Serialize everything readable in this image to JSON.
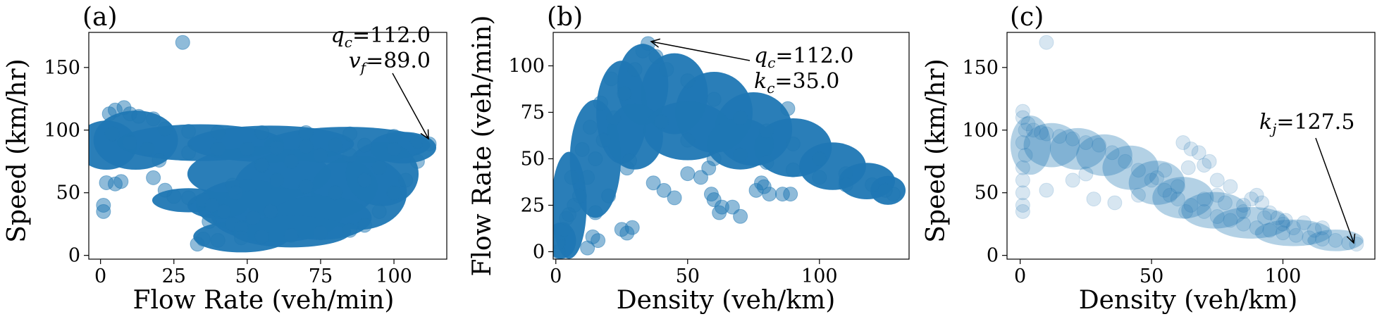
{
  "chart_data": [
    {
      "id": "a",
      "type": "scatter",
      "panel_label": "(a)",
      "xlabel": "Flow Rate (veh/min)",
      "ylabel": "Speed (km/hr)",
      "xlim": [
        -4,
        118
      ],
      "ylim": [
        -3,
        178
      ],
      "xticks": [
        0,
        25,
        50,
        75,
        100
      ],
      "yticks": [
        0,
        50,
        100,
        150
      ],
      "point_color": "#1f77b4",
      "point_alpha": 0.5,
      "annotation": {
        "lines": [
          {
            "sym": "q",
            "sub": "c",
            "val": "=112.0"
          },
          {
            "sym": "v",
            "sub": "f",
            "val": "=89.0"
          }
        ],
        "point": [
          112,
          89
        ]
      },
      "points": [
        [
          28,
          170
        ],
        [
          1,
          35
        ],
        [
          1,
          40
        ],
        [
          2,
          58
        ],
        [
          5,
          57
        ],
        [
          7,
          59
        ],
        [
          3,
          113
        ],
        [
          5,
          116
        ],
        [
          8,
          118
        ],
        [
          10,
          113
        ],
        [
          13,
          111
        ],
        [
          18,
          109
        ],
        [
          22,
          101
        ],
        [
          30,
          99
        ],
        [
          40,
          98
        ],
        [
          55,
          98
        ],
        [
          70,
          98
        ],
        [
          85,
          97
        ],
        [
          100,
          95
        ],
        [
          108,
          91
        ],
        [
          112,
          89
        ],
        [
          4,
          97
        ],
        [
          10,
          90
        ],
        [
          16,
          85
        ],
        [
          20,
          76
        ],
        [
          18,
          62
        ],
        [
          22,
          52
        ],
        [
          25,
          47
        ],
        [
          30,
          46
        ],
        [
          35,
          44
        ],
        [
          38,
          40
        ],
        [
          42,
          35
        ],
        [
          37,
          27
        ],
        [
          45,
          25
        ],
        [
          48,
          22
        ],
        [
          52,
          30
        ],
        [
          58,
          35
        ],
        [
          45,
          56
        ],
        [
          46,
          50
        ],
        [
          33,
          9
        ],
        [
          35,
          13
        ],
        [
          40,
          12
        ],
        [
          48,
          14
        ],
        [
          55,
          15
        ],
        [
          65,
          16
        ],
        [
          75,
          18
        ],
        [
          85,
          20
        ],
        [
          90,
          24
        ],
        [
          95,
          35
        ],
        [
          100,
          50
        ],
        [
          104,
          60
        ],
        [
          108,
          75
        ],
        [
          60,
          60
        ],
        [
          70,
          55
        ],
        [
          80,
          50
        ],
        [
          90,
          60
        ],
        [
          95,
          70
        ],
        [
          85,
          80
        ],
        [
          75,
          80
        ],
        [
          65,
          75
        ],
        [
          55,
          72
        ],
        [
          30,
          82
        ],
        [
          40,
          85
        ],
        [
          50,
          85
        ],
        [
          60,
          86
        ],
        [
          70,
          87
        ],
        [
          80,
          88
        ],
        [
          90,
          88
        ],
        [
          100,
          85
        ]
      ],
      "blobs": [
        {
          "cx": 2,
          "cy": 88,
          "rx": 8,
          "ry": 14
        },
        {
          "cx": 12,
          "cy": 92,
          "rx": 12,
          "ry": 18
        },
        {
          "cx": 34,
          "cy": 90,
          "rx": 26,
          "ry": 9
        },
        {
          "cx": 58,
          "cy": 89,
          "rx": 26,
          "ry": 9
        },
        {
          "cx": 84,
          "cy": 88,
          "rx": 26,
          "ry": 9
        },
        {
          "cx": 103,
          "cy": 86,
          "rx": 9,
          "ry": 7
        },
        {
          "cx": 54,
          "cy": 65,
          "rx": 22,
          "ry": 16
        },
        {
          "cx": 70,
          "cy": 55,
          "rx": 22,
          "ry": 24
        },
        {
          "cx": 88,
          "cy": 50,
          "rx": 14,
          "ry": 24
        },
        {
          "cx": 50,
          "cy": 40,
          "rx": 15,
          "ry": 15
        },
        {
          "cx": 60,
          "cy": 32,
          "rx": 20,
          "ry": 16
        },
        {
          "cx": 75,
          "cy": 30,
          "rx": 15,
          "ry": 12
        },
        {
          "cx": 48,
          "cy": 15,
          "rx": 14,
          "ry": 7
        },
        {
          "cx": 65,
          "cy": 19,
          "rx": 18,
          "ry": 7
        },
        {
          "cx": 30,
          "cy": 44,
          "rx": 10,
          "ry": 4
        },
        {
          "cx": 40,
          "cy": 40,
          "rx": 8,
          "ry": 5
        },
        {
          "cx": 96,
          "cy": 65,
          "rx": 10,
          "ry": 20
        }
      ]
    },
    {
      "id": "b",
      "type": "scatter",
      "panel_label": "(b)",
      "xlabel": "Density (veh/km)",
      "ylabel": "Flow Rate (veh/min)",
      "xlim": [
        -1,
        134
      ],
      "ylim": [
        -4,
        118
      ],
      "xticks": [
        0,
        50,
        100
      ],
      "yticks": [
        0,
        25,
        50,
        75,
        100
      ],
      "point_color": "#1f77b4",
      "point_alpha": 0.5,
      "annotation": {
        "lines": [
          {
            "sym": "q",
            "sub": "c",
            "val": "=112.0"
          },
          {
            "sym": "k",
            "sub": "c",
            "val": "=35.0"
          }
        ],
        "point": [
          35,
          112
        ]
      },
      "points": [
        [
          1,
          0
        ],
        [
          1,
          5
        ],
        [
          2,
          10
        ],
        [
          3,
          12
        ],
        [
          4,
          18
        ],
        [
          5,
          20
        ],
        [
          7,
          25
        ],
        [
          9,
          30
        ],
        [
          12,
          40
        ],
        [
          15,
          50
        ],
        [
          18,
          60
        ],
        [
          22,
          72
        ],
        [
          26,
          85
        ],
        [
          30,
          98
        ],
        [
          33,
          108
        ],
        [
          35,
          112
        ],
        [
          38,
          105
        ],
        [
          42,
          98
        ],
        [
          50,
          92
        ],
        [
          60,
          82
        ],
        [
          70,
          72
        ],
        [
          80,
          65
        ],
        [
          90,
          58
        ],
        [
          100,
          50
        ],
        [
          110,
          42
        ],
        [
          120,
          36
        ],
        [
          128,
          31
        ],
        [
          125,
          33
        ],
        [
          88,
          77
        ],
        [
          15,
          21
        ],
        [
          20,
          30
        ],
        [
          27,
          45
        ],
        [
          28,
          49
        ],
        [
          25,
          12
        ],
        [
          27,
          10
        ],
        [
          29,
          13
        ],
        [
          37,
          37
        ],
        [
          41,
          33
        ],
        [
          45,
          29
        ],
        [
          50,
          42
        ],
        [
          55,
          40
        ],
        [
          58,
          45
        ],
        [
          59,
          31
        ],
        [
          60,
          28
        ],
        [
          62,
          21
        ],
        [
          63,
          24
        ],
        [
          67,
          24
        ],
        [
          70,
          19
        ],
        [
          76,
          33
        ],
        [
          78,
          37
        ],
        [
          79,
          35
        ],
        [
          81,
          31
        ],
        [
          86,
          31
        ],
        [
          89,
          31
        ],
        [
          6,
          40
        ],
        [
          10,
          55
        ],
        [
          13,
          67
        ],
        [
          17,
          80
        ],
        [
          21,
          93
        ],
        [
          40,
          70
        ],
        [
          50,
          60
        ],
        [
          60,
          50
        ],
        [
          70,
          52
        ],
        [
          80,
          48
        ],
        [
          90,
          44
        ],
        [
          100,
          40
        ],
        [
          110,
          36
        ],
        [
          12,
          2
        ],
        [
          14,
          8
        ],
        [
          16,
          6
        ]
      ],
      "blobs": [
        {
          "cx": 5,
          "cy": 25,
          "rx": 4,
          "ry": 25
        },
        {
          "cx": 15,
          "cy": 50,
          "rx": 7,
          "ry": 28
        },
        {
          "cx": 25,
          "cy": 75,
          "rx": 7,
          "ry": 24
        },
        {
          "cx": 33,
          "cy": 90,
          "rx": 7,
          "ry": 18
        },
        {
          "cx": 45,
          "cy": 85,
          "rx": 10,
          "ry": 18
        },
        {
          "cx": 60,
          "cy": 75,
          "rx": 12,
          "ry": 18
        },
        {
          "cx": 75,
          "cy": 66,
          "rx": 12,
          "ry": 16
        },
        {
          "cx": 90,
          "cy": 56,
          "rx": 12,
          "ry": 12
        },
        {
          "cx": 105,
          "cy": 46,
          "rx": 10,
          "ry": 9
        },
        {
          "cx": 118,
          "cy": 38,
          "rx": 8,
          "ry": 6
        },
        {
          "cx": 126,
          "cy": 33,
          "rx": 4,
          "ry": 4
        },
        {
          "cx": 30,
          "cy": 62,
          "rx": 8,
          "ry": 14
        },
        {
          "cx": 50,
          "cy": 65,
          "rx": 14,
          "ry": 12
        },
        {
          "cx": 70,
          "cy": 58,
          "rx": 10,
          "ry": 10
        },
        {
          "cx": 2,
          "cy": 6,
          "rx": 3,
          "ry": 6
        }
      ]
    },
    {
      "id": "c",
      "type": "scatter",
      "panel_label": "(c)",
      "xlabel": "Density (veh/km)",
      "ylabel": "Speed (km/hr)",
      "xlim": [
        -5,
        135
      ],
      "ylim": [
        -3,
        178
      ],
      "xticks": [
        0,
        50,
        100
      ],
      "yticks": [
        0,
        50,
        100,
        150
      ],
      "point_color": "#1f77b4",
      "point_alpha": 0.18,
      "annotation": {
        "lines": [
          {
            "sym": "k",
            "sub": "j",
            "val": "=127.5"
          }
        ],
        "point": [
          127.5,
          10
        ]
      },
      "points": [
        [
          10,
          170
        ],
        [
          1,
          35
        ],
        [
          1,
          40
        ],
        [
          1,
          50
        ],
        [
          1,
          60
        ],
        [
          1,
          70
        ],
        [
          2,
          80
        ],
        [
          1,
          90
        ],
        [
          2,
          100
        ],
        [
          1,
          110
        ],
        [
          1,
          115
        ],
        [
          3,
          105
        ],
        [
          5,
          100
        ],
        [
          8,
          98
        ],
        [
          10,
          97
        ],
        [
          15,
          95
        ],
        [
          20,
          93
        ],
        [
          25,
          90
        ],
        [
          30,
          88
        ],
        [
          35,
          82
        ],
        [
          40,
          75
        ],
        [
          45,
          68
        ],
        [
          50,
          60
        ],
        [
          55,
          52
        ],
        [
          60,
          45
        ],
        [
          65,
          40
        ],
        [
          70,
          35
        ],
        [
          75,
          31
        ],
        [
          80,
          28
        ],
        [
          85,
          25
        ],
        [
          90,
          22
        ],
        [
          95,
          20
        ],
        [
          100,
          18
        ],
        [
          105,
          16
        ],
        [
          110,
          14
        ],
        [
          115,
          13
        ],
        [
          120,
          12
        ],
        [
          125,
          10
        ],
        [
          128,
          9
        ],
        [
          10,
          52
        ],
        [
          20,
          60
        ],
        [
          25,
          65
        ],
        [
          28,
          45
        ],
        [
          36,
          42
        ],
        [
          45,
          48
        ],
        [
          52,
          62
        ],
        [
          55,
          68
        ],
        [
          62,
          90
        ],
        [
          65,
          85
        ],
        [
          68,
          82
        ],
        [
          64,
          70
        ],
        [
          70,
          72
        ],
        [
          72,
          75
        ],
        [
          75,
          60
        ],
        [
          80,
          55
        ],
        [
          85,
          40
        ],
        [
          88,
          45
        ],
        [
          90,
          48
        ],
        [
          92,
          42
        ],
        [
          95,
          34
        ],
        [
          98,
          30
        ],
        [
          101,
          28
        ],
        [
          104,
          22
        ],
        [
          108,
          26
        ],
        [
          112,
          20
        ],
        [
          115,
          22
        ],
        [
          100,
          25
        ],
        [
          93,
          30
        ],
        [
          85,
          35
        ],
        [
          78,
          42
        ],
        [
          60,
          55
        ],
        [
          57,
          48
        ],
        [
          63,
          35
        ],
        [
          70,
          45
        ],
        [
          75,
          48
        ]
      ],
      "blobs": [
        {
          "cx": 4,
          "cy": 88,
          "rx": 5,
          "ry": 18
        },
        {
          "cx": 12,
          "cy": 88,
          "rx": 8,
          "ry": 12
        },
        {
          "cx": 22,
          "cy": 85,
          "rx": 8,
          "ry": 11
        },
        {
          "cx": 32,
          "cy": 80,
          "rx": 8,
          "ry": 11
        },
        {
          "cx": 42,
          "cy": 70,
          "rx": 8,
          "ry": 12
        },
        {
          "cx": 52,
          "cy": 58,
          "rx": 8,
          "ry": 12
        },
        {
          "cx": 62,
          "cy": 46,
          "rx": 9,
          "ry": 11
        },
        {
          "cx": 74,
          "cy": 36,
          "rx": 10,
          "ry": 9
        },
        {
          "cx": 88,
          "cy": 26,
          "rx": 12,
          "ry": 7
        },
        {
          "cx": 104,
          "cy": 18,
          "rx": 12,
          "ry": 5
        },
        {
          "cx": 120,
          "cy": 12,
          "rx": 8,
          "ry": 3
        }
      ]
    }
  ]
}
